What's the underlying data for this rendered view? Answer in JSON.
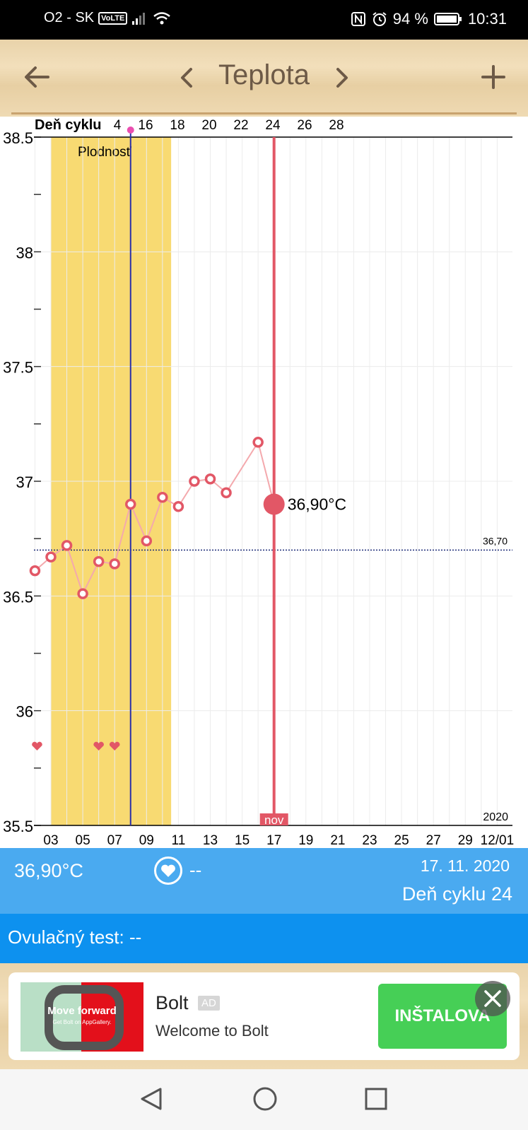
{
  "status_bar": {
    "carrier": "O2 - SK",
    "network_badge": "VoLTE",
    "battery_percent": "94 %",
    "time": "10:31",
    "icons": [
      "signal-icon",
      "wifi-icon",
      "nfc-icon",
      "alarm-icon",
      "battery-icon"
    ]
  },
  "header": {
    "title": "Teplota",
    "icons": [
      "back-arrow-icon",
      "chevron-left-icon",
      "chevron-right-icon",
      "plus-icon"
    ]
  },
  "chart_data": {
    "type": "line",
    "top_axis_label": "Deň cyklu",
    "top_ticks": [
      "4",
      "16",
      "18",
      "20",
      "22",
      "24",
      "26",
      "28"
    ],
    "x_ticks": [
      "03",
      "05",
      "07",
      "09",
      "11",
      "13",
      "15",
      "17",
      "19",
      "21",
      "23",
      "25",
      "27",
      "29",
      "12/01"
    ],
    "x_day_range": [
      2,
      33
    ],
    "y_ticks": [
      "38.5",
      "38",
      "37.5",
      "37",
      "36.5",
      "36",
      "35.5"
    ],
    "ylim": [
      35.5,
      38.5
    ],
    "fertile_window": {
      "label": "Plodnosť",
      "start_day": 3,
      "end_day": 10
    },
    "baseline": {
      "value": 36.7,
      "label": "36,70"
    },
    "ovulation_day": 8,
    "moon_phase": {
      "day": 17,
      "label": "nov"
    },
    "year_label": "2020",
    "intercourse_days": [
      2,
      6,
      7
    ],
    "series": [
      {
        "values": [
          {
            "day": 2,
            "temp": 36.61
          },
          {
            "day": 3,
            "temp": 36.67
          },
          {
            "day": 4,
            "temp": 36.72
          },
          {
            "day": 5,
            "temp": 36.51
          },
          {
            "day": 6,
            "temp": 36.65
          },
          {
            "day": 7,
            "temp": 36.64
          },
          {
            "day": 8,
            "temp": 36.9
          },
          {
            "day": 9,
            "temp": 36.74
          },
          {
            "day": 10,
            "temp": 36.93
          },
          {
            "day": 11,
            "temp": 36.89
          },
          {
            "day": 12,
            "temp": 37.0
          },
          {
            "day": 13,
            "temp": 37.01
          },
          {
            "day": 14,
            "temp": 36.95
          },
          {
            "day": 16,
            "temp": 37.17
          },
          {
            "day": 17,
            "temp": 36.9
          }
        ]
      }
    ],
    "selected": {
      "day": 17,
      "label": "36,90°C"
    },
    "colors": {
      "fertile": "#f8da72",
      "point": "#e25766",
      "line": "#f4a9ad",
      "ovulation_line": "#2b2fa8",
      "selected_line": "#e25766",
      "baseline": "#1f2e7a",
      "ovulation_marker": "#ea4fb0"
    }
  },
  "info": {
    "temperature": "36,90°C",
    "heart_value": "--",
    "date": "17. 11. 2020",
    "cycle_day": "Deň cyklu 24",
    "ovulation_test": "Ovulačný test: --"
  },
  "ad": {
    "image_headline": "Move forward",
    "image_subline": "Get Bolt on AppGallery.",
    "title": "Bolt",
    "badge": "AD",
    "description": "Welcome to Bolt",
    "button_label": "INŠTALOVA",
    "colors": {
      "button": "#46cf56",
      "brand": "#e3101b"
    }
  },
  "nav": {
    "icons": [
      "nav-back-icon",
      "nav-home-icon",
      "nav-recent-icon"
    ]
  }
}
